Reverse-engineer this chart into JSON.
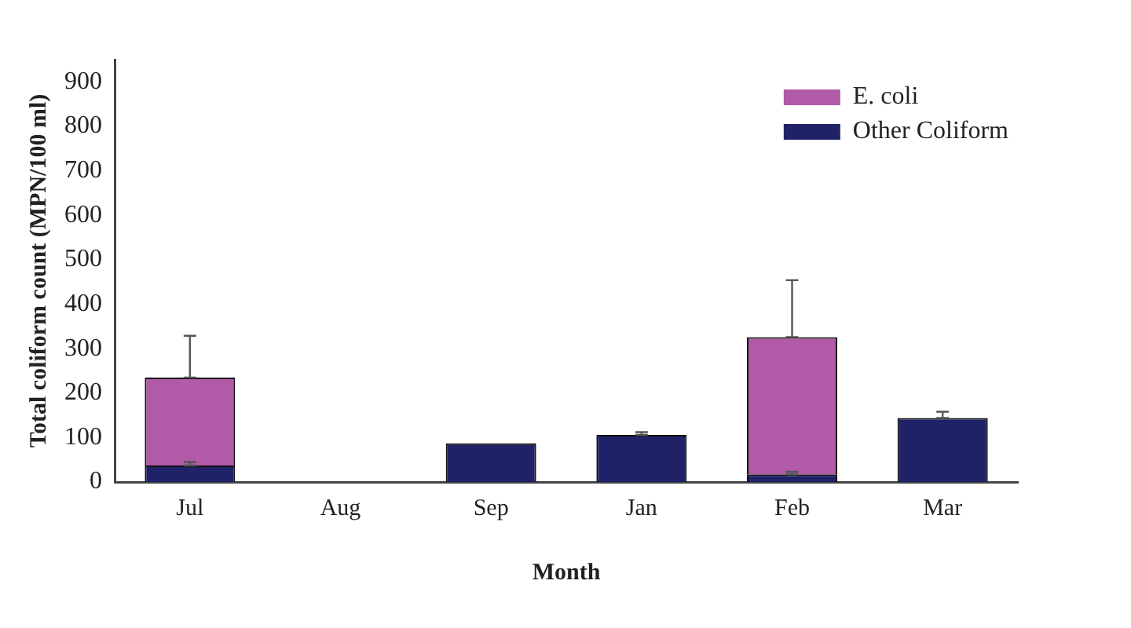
{
  "chart_data": {
    "type": "bar",
    "xlabel": "Month",
    "ylabel": "Total coliform count (MPN/100 ml)",
    "categories": [
      "Jul",
      "Aug",
      "Sep",
      "Jan",
      "Feb",
      "Mar"
    ],
    "stacked": true,
    "series": [
      {
        "name": "Other Coliform",
        "color": "#1f2266",
        "values": [
          37,
          0,
          87,
          106,
          17,
          144
        ],
        "errors": [
          [
            37,
            45
          ],
          null,
          null,
          [
            106,
            112
          ],
          [
            17,
            23
          ],
          [
            144,
            158
          ]
        ]
      },
      {
        "name": "E. coli",
        "color": "#b05aa8",
        "values": [
          198,
          0,
          0,
          0,
          309,
          0
        ],
        "errors": [
          [
            235,
            329
          ],
          null,
          null,
          null,
          [
            326,
            454
          ],
          null
        ]
      }
    ],
    "ylim": [
      0,
      950
    ],
    "yticks": [
      0,
      100,
      200,
      300,
      400,
      500,
      600,
      700,
      800,
      900
    ],
    "grid": false,
    "legend": "top right"
  }
}
